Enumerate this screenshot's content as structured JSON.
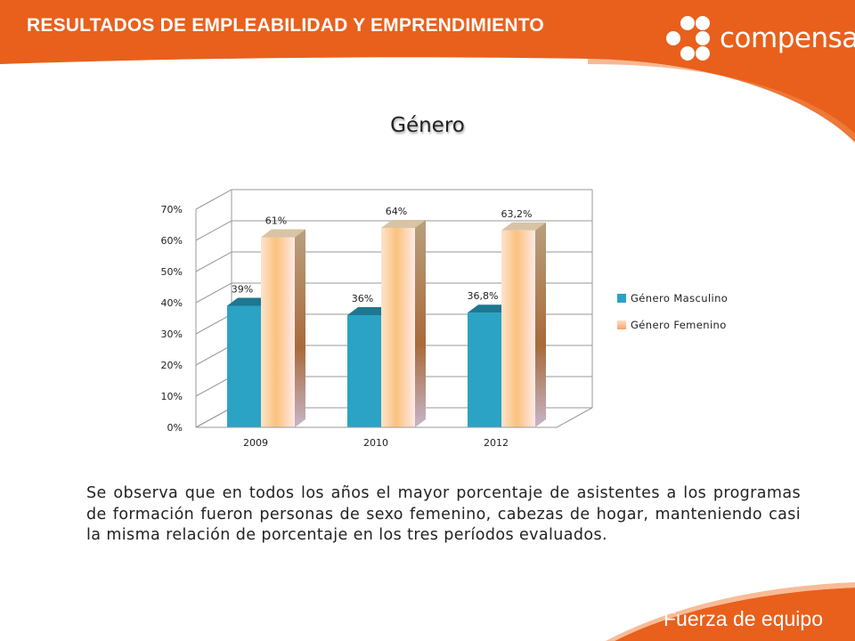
{
  "header": {
    "title": "RESULTADOS DE EMPLEABILIDAD Y EMPRENDIMIENTO",
    "logo_text": "compensar"
  },
  "colors": {
    "brand_orange": "#e8601c",
    "masculino": "#2aa3c4",
    "femenino": "#f9b87a"
  },
  "chart_data": {
    "type": "bar",
    "title": "Género",
    "categories": [
      "2009",
      "2010",
      "2012"
    ],
    "series": [
      {
        "name": "Género Masculino",
        "values": [
          39,
          36,
          36.8
        ],
        "labels": [
          "39%",
          "36%",
          "36,8%"
        ]
      },
      {
        "name": "Género Femenino",
        "values": [
          61,
          64,
          63.2
        ],
        "labels": [
          "61%",
          "64%",
          "63,2%"
        ]
      }
    ],
    "y_ticks": [
      "0%",
      "10%",
      "20%",
      "30%",
      "40%",
      "50%",
      "60%",
      "70%"
    ],
    "ylim": [
      0,
      70
    ],
    "grid": true,
    "legend_position": "right",
    "style": "3d-column"
  },
  "description": "Se observa que en todos  los años el mayor porcentaje de asistentes a los programas de formación fueron personas de sexo femenino, cabezas de hogar, manteniendo casi la misma relación de porcentaje en los tres períodos evaluados.",
  "footer": {
    "tagline": "Fuerza de equipo"
  }
}
